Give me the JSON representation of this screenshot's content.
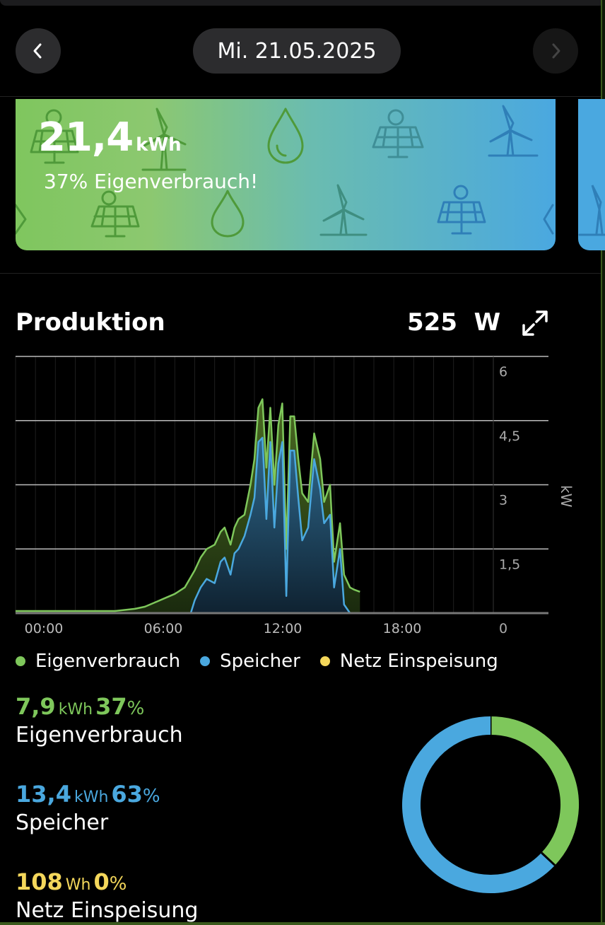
{
  "header": {
    "date": "Mi. 21.05.2025",
    "prev_icon": "chevron-left-icon",
    "next_icon": "chevron-right-icon"
  },
  "hero": {
    "value": "21,4",
    "unit": "kWh",
    "subtitle": "37% Eigenverbrauch!",
    "icons": [
      "solar-panel-icon",
      "wind-turbine-icon",
      "water-drop-icon"
    ]
  },
  "section": {
    "title": "Produktion",
    "current_value": "525",
    "current_unit": "W",
    "expand_icon": "expand-icon"
  },
  "chart_data": {
    "type": "area",
    "x_ticks": [
      "00:00",
      "06:00",
      "12:00",
      "18:00"
    ],
    "y_ticks": [
      "6",
      "4,5",
      "3",
      "1,5",
      "0"
    ],
    "ylabel": "kW",
    "ylim": [
      0,
      6
    ],
    "xlim": [
      0,
      24
    ],
    "grid": true,
    "series": [
      {
        "name": "Eigenverbrauch",
        "color": "#7ec75b",
        "points": [
          [
            0,
            0.05
          ],
          [
            5,
            0.05
          ],
          [
            6,
            0.1
          ],
          [
            6.5,
            0.15
          ],
          [
            7,
            0.25
          ],
          [
            7.5,
            0.35
          ],
          [
            8,
            0.45
          ],
          [
            8.5,
            0.6
          ],
          [
            9,
            1.0
          ],
          [
            9.3,
            1.3
          ],
          [
            9.6,
            1.5
          ],
          [
            10,
            1.6
          ],
          [
            10.3,
            1.9
          ],
          [
            10.5,
            2.0
          ],
          [
            10.8,
            1.6
          ],
          [
            11,
            2.0
          ],
          [
            11.2,
            2.2
          ],
          [
            11.5,
            2.3
          ],
          [
            11.8,
            3.0
          ],
          [
            12,
            3.6
          ],
          [
            12.2,
            4.8
          ],
          [
            12.4,
            5.0
          ],
          [
            12.6,
            3.4
          ],
          [
            12.8,
            4.8
          ],
          [
            13,
            3.0
          ],
          [
            13.2,
            4.4
          ],
          [
            13.4,
            4.9
          ],
          [
            13.6,
            1.5
          ],
          [
            13.8,
            4.6
          ],
          [
            14,
            4.6
          ],
          [
            14.2,
            3.6
          ],
          [
            14.4,
            2.8
          ],
          [
            14.7,
            2.6
          ],
          [
            15,
            4.2
          ],
          [
            15.3,
            3.6
          ],
          [
            15.5,
            2.6
          ],
          [
            15.8,
            3.0
          ],
          [
            16,
            1.2
          ],
          [
            16.3,
            2.1
          ],
          [
            16.5,
            0.9
          ],
          [
            16.8,
            0.6
          ],
          [
            17,
            0.55
          ],
          [
            17.3,
            0.5
          ]
        ]
      },
      {
        "name": "Speicher",
        "color": "#4aa8df",
        "points": [
          [
            0,
            0
          ],
          [
            8.8,
            0
          ],
          [
            9,
            0.3
          ],
          [
            9.3,
            0.6
          ],
          [
            9.6,
            0.8
          ],
          [
            10,
            0.7
          ],
          [
            10.3,
            1.2
          ],
          [
            10.5,
            1.3
          ],
          [
            10.8,
            0.9
          ],
          [
            11,
            1.4
          ],
          [
            11.2,
            1.5
          ],
          [
            11.5,
            1.8
          ],
          [
            11.8,
            2.3
          ],
          [
            12,
            2.7
          ],
          [
            12.2,
            4.0
          ],
          [
            12.4,
            4.1
          ],
          [
            12.6,
            2.2
          ],
          [
            12.8,
            4.0
          ],
          [
            13,
            2.0
          ],
          [
            13.2,
            3.5
          ],
          [
            13.4,
            4.0
          ],
          [
            13.6,
            0.4
          ],
          [
            13.8,
            3.8
          ],
          [
            14,
            3.8
          ],
          [
            14.2,
            2.7
          ],
          [
            14.4,
            1.7
          ],
          [
            14.7,
            2.0
          ],
          [
            15,
            3.6
          ],
          [
            15.3,
            2.9
          ],
          [
            15.5,
            2.1
          ],
          [
            15.8,
            2.3
          ],
          [
            16,
            0.6
          ],
          [
            16.3,
            1.5
          ],
          [
            16.5,
            0.2
          ],
          [
            16.8,
            0
          ]
        ]
      },
      {
        "name": "Netz Einspeisung",
        "color": "#f4d75b",
        "points": [
          [
            0,
            0
          ],
          [
            24,
            0
          ]
        ]
      }
    ]
  },
  "legend": [
    {
      "label": "Eigenverbrauch",
      "color": "#7ec75b"
    },
    {
      "label": "Speicher",
      "color": "#4aa8df"
    },
    {
      "label": "Netz Einspeisung",
      "color": "#f4d75b"
    }
  ],
  "stats": [
    {
      "value": "7,9",
      "unit": "kWh",
      "percent": "37",
      "pct_sign": "%",
      "label": "Eigenverbrauch",
      "color": "#7ec75b"
    },
    {
      "value": "13,4",
      "unit": "kWh",
      "percent": "63",
      "pct_sign": "%",
      "label": "Speicher",
      "color": "#4aa8df"
    },
    {
      "value": "108",
      "unit": "Wh",
      "percent": "0",
      "pct_sign": "%",
      "label": "Netz Einspeisung",
      "color": "#f4d75b"
    }
  ],
  "donut": {
    "segments": [
      {
        "name": "Eigenverbrauch",
        "fraction": 0.37,
        "color": "#7ec75b"
      },
      {
        "name": "Speicher",
        "fraction": 0.63,
        "color": "#4aa8df"
      },
      {
        "name": "Netz Einspeisung",
        "fraction": 0.0,
        "color": "#f4d75b"
      }
    ]
  }
}
